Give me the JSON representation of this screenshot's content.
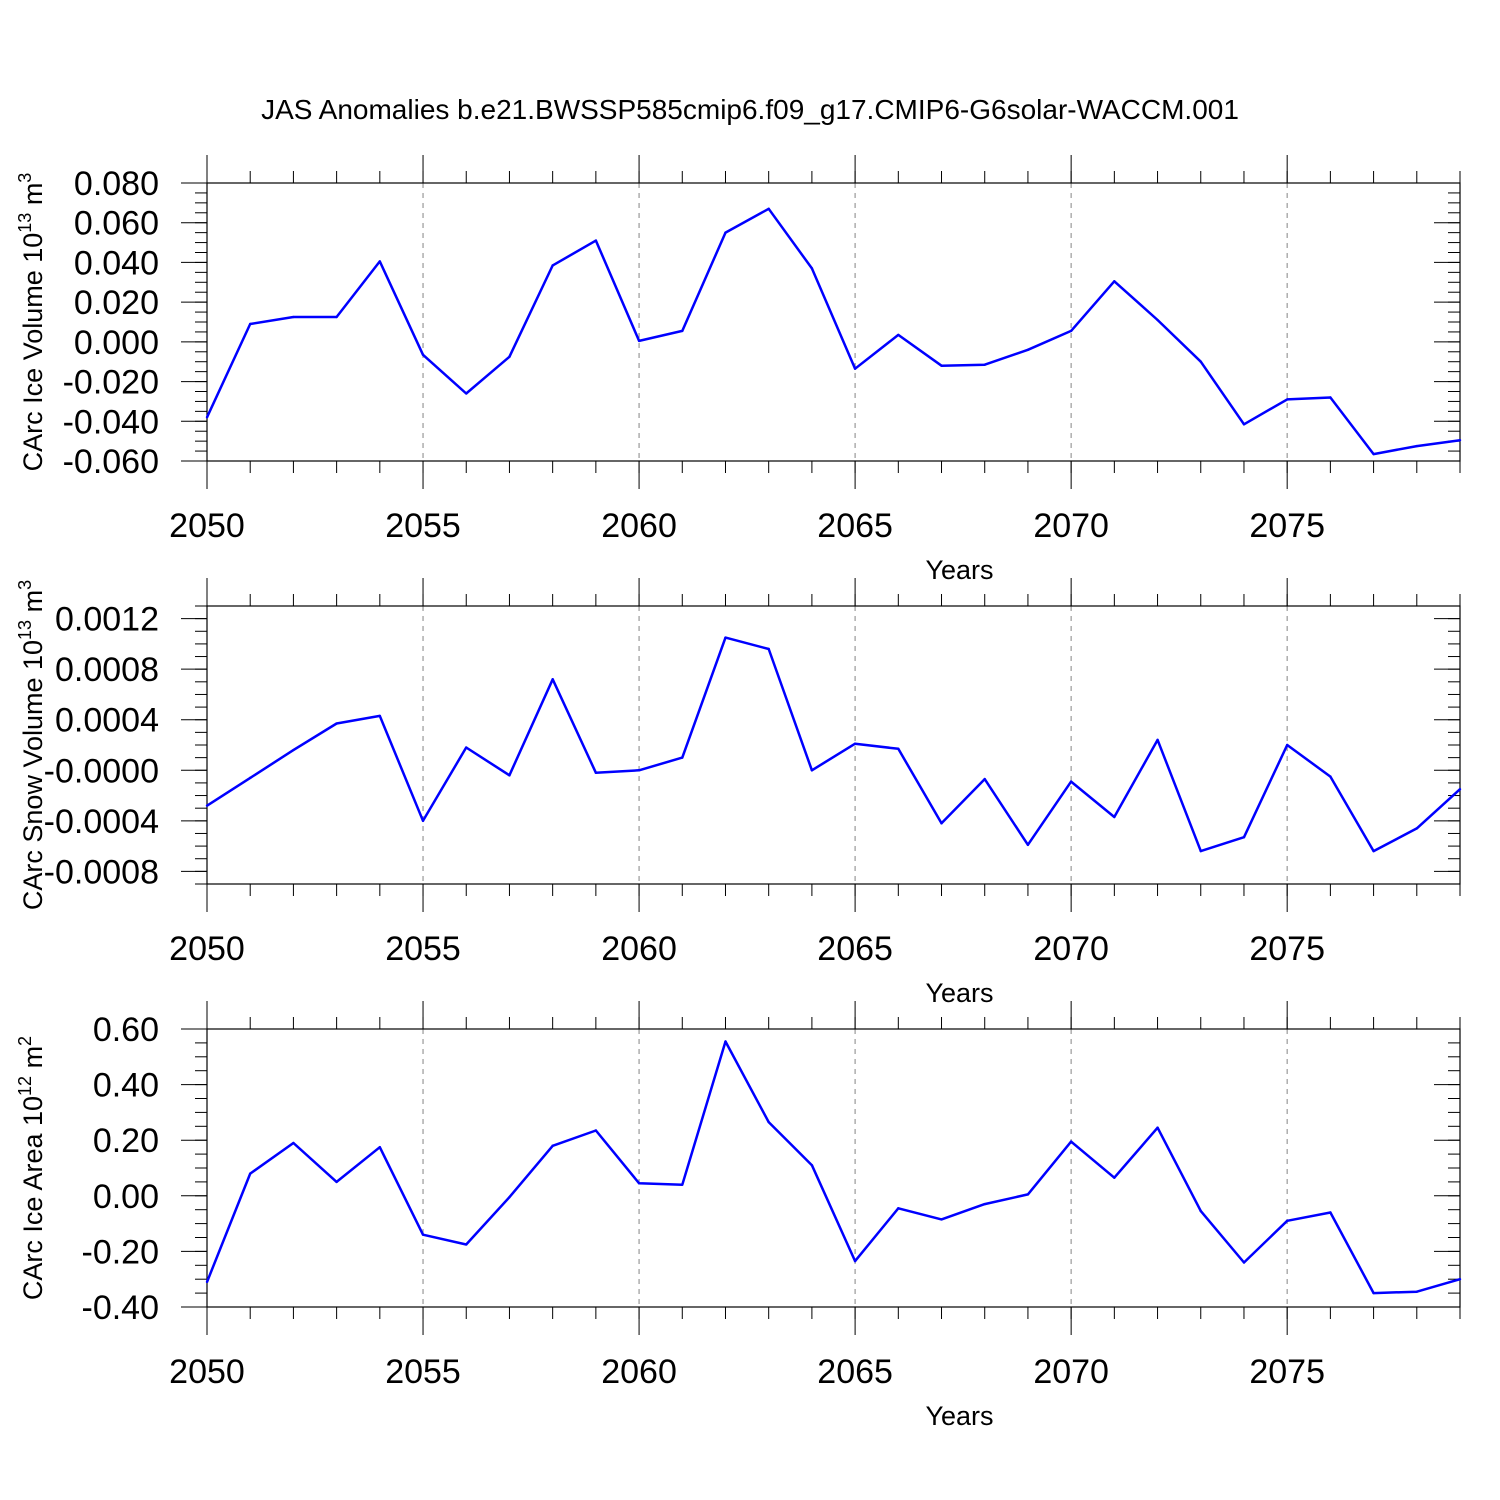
{
  "title": "JAS Anomalies b.e21.BWSSP585cmip6.f09_g17.CMIP6-G6solar-WACCM.001",
  "chart_data": [
    {
      "type": "line",
      "xlabel": "Years",
      "ylabel": "CArc Ice Volume 10",
      "ylabel_exp": "13",
      "ylabel_unit": " m",
      "ylabel_unit_exp": "3",
      "xlim": [
        2050,
        2079
      ],
      "ylim": [
        -0.06,
        0.08
      ],
      "xticks": [
        2050,
        2055,
        2060,
        2065,
        2070,
        2075
      ],
      "xtick_labels": [
        "2050",
        "2055",
        "2060",
        "2065",
        "2070",
        "2075"
      ],
      "yticks": [
        -0.06,
        -0.04,
        -0.02,
        0.0,
        0.02,
        0.04,
        0.06,
        0.08
      ],
      "ytick_labels": [
        "-0.060",
        "-0.040",
        "-0.020",
        "0.000",
        "0.020",
        "0.040",
        "0.060",
        "0.080"
      ],
      "yminor_step": 0.005,
      "grid": "dashed vertical at major x ticks",
      "line_color": "#0000ff",
      "x": [
        2050,
        2051,
        2052,
        2053,
        2054,
        2055,
        2056,
        2057,
        2058,
        2059,
        2060,
        2061,
        2062,
        2063,
        2064,
        2065,
        2066,
        2067,
        2068,
        2069,
        2070,
        2071,
        2072,
        2073,
        2074,
        2075,
        2076,
        2077,
        2078,
        2079
      ],
      "values": [
        -0.038,
        0.009,
        0.0125,
        0.0125,
        0.0405,
        -0.0065,
        -0.026,
        -0.0075,
        0.0385,
        0.051,
        0.0005,
        0.0055,
        0.055,
        0.067,
        0.037,
        -0.0135,
        0.0035,
        -0.012,
        -0.0115,
        -0.004,
        0.0055,
        0.0305,
        0.011,
        -0.01,
        -0.0415,
        -0.029,
        -0.028,
        -0.0565,
        -0.0525,
        -0.0495
      ]
    },
    {
      "type": "line",
      "xlabel": "Years",
      "ylabel": "CArc Snow Volume 10",
      "ylabel_exp": "13",
      "ylabel_unit": " m",
      "ylabel_unit_exp": "3",
      "xlim": [
        2050,
        2079
      ],
      "ylim": [
        -0.0009,
        0.0013
      ],
      "xticks": [
        2050,
        2055,
        2060,
        2065,
        2070,
        2075
      ],
      "xtick_labels": [
        "2050",
        "2055",
        "2060",
        "2065",
        "2070",
        "2075"
      ],
      "yticks": [
        -0.0008,
        -0.0004,
        0.0,
        0.0004,
        0.0008,
        0.0012
      ],
      "ytick_labels": [
        "-0.0008",
        "-0.0004",
        "-0.0000",
        "0.0004",
        "0.0008",
        "0.0012"
      ],
      "yminor_step": 0.0001,
      "grid": "dashed vertical at major x ticks",
      "line_color": "#0000ff",
      "x": [
        2050,
        2051,
        2052,
        2053,
        2054,
        2055,
        2056,
        2057,
        2058,
        2059,
        2060,
        2061,
        2062,
        2063,
        2064,
        2065,
        2066,
        2067,
        2068,
        2069,
        2070,
        2071,
        2072,
        2073,
        2074,
        2075,
        2076,
        2077,
        2078,
        2079
      ],
      "values": [
        -0.00028,
        -6e-05,
        0.00016,
        0.00037,
        0.00043,
        -0.0004,
        0.00018,
        -4e-05,
        0.00072,
        -2e-05,
        0.0,
        0.0001,
        0.00105,
        0.00096,
        0.0,
        0.00021,
        0.00017,
        -0.00042,
        -7e-05,
        -0.00059,
        -9e-05,
        -0.00037,
        0.00024,
        -0.00064,
        -0.00053,
        0.0002,
        -5e-05,
        -0.00064,
        -0.00046,
        -0.00015
      ]
    },
    {
      "type": "line",
      "xlabel": "Years",
      "ylabel": "CArc Ice Area 10",
      "ylabel_exp": "12",
      "ylabel_unit": " m",
      "ylabel_unit_exp": "2",
      "xlim": [
        2050,
        2079
      ],
      "ylim": [
        -0.4,
        0.6
      ],
      "xticks": [
        2050,
        2055,
        2060,
        2065,
        2070,
        2075
      ],
      "xtick_labels": [
        "2050",
        "2055",
        "2060",
        "2065",
        "2070",
        "2075"
      ],
      "yticks": [
        -0.4,
        -0.2,
        0.0,
        0.2,
        0.4,
        0.6
      ],
      "ytick_labels": [
        "-0.40",
        "-0.20",
        "0.00",
        "0.20",
        "0.40",
        "0.60"
      ],
      "yminor_step": 0.05,
      "grid": "dashed vertical at major x ticks",
      "line_color": "#0000ff",
      "x": [
        2050,
        2051,
        2052,
        2053,
        2054,
        2055,
        2056,
        2057,
        2058,
        2059,
        2060,
        2061,
        2062,
        2063,
        2064,
        2065,
        2066,
        2067,
        2068,
        2069,
        2070,
        2071,
        2072,
        2073,
        2074,
        2075,
        2076,
        2077,
        2078,
        2079
      ],
      "values": [
        -0.31,
        0.08,
        0.19,
        0.05,
        0.175,
        -0.14,
        -0.175,
        -0.005,
        0.18,
        0.235,
        0.045,
        0.04,
        0.555,
        0.265,
        0.11,
        -0.235,
        -0.045,
        -0.085,
        -0.03,
        0.005,
        0.195,
        0.065,
        0.245,
        -0.055,
        -0.24,
        -0.09,
        -0.06,
        -0.35,
        -0.345,
        -0.3
      ]
    }
  ]
}
